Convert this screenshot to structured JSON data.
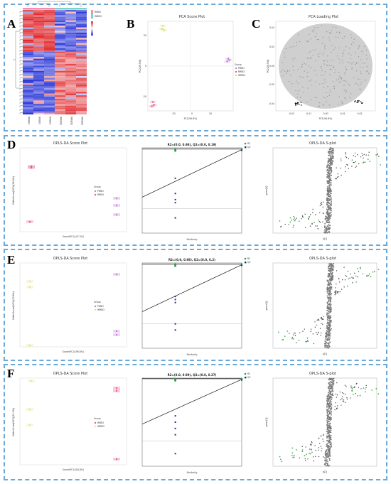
{
  "figure": {
    "panel_letters": [
      "A",
      "B",
      "C",
      "D",
      "E",
      "F"
    ]
  },
  "panelA": {
    "legend_labels": [
      "RRBO",
      "WRBO"
    ],
    "sample_labels": [
      "RRBO1",
      "RRBO2",
      "RRBO3",
      "WRBO1",
      "WRBO2",
      "WRBO3"
    ],
    "colors": {
      "high": "#e0282c",
      "mid": "#ffffff",
      "low": "#2a36d8",
      "group1": "#f48fb1",
      "group2": "#7bd3c4"
    }
  },
  "panelB": {
    "title": "PCA Score Plot",
    "xlabel": "PC1(56.8%)",
    "ylabel": "PC2(20.8%)",
    "legend_title": "Group",
    "legend_items": [
      "PRBO",
      "RRBO",
      "WRBO"
    ],
    "xticks": [
      "-20",
      "0",
      "20"
    ],
    "yticks": [
      "-20",
      "0",
      "20"
    ]
  },
  "panelC": {
    "title": "PCA Loading Plot",
    "xlabel": "PC1(56.8%)",
    "ylabel": "PC2(20.8%)",
    "xticks": [
      "-0.02",
      "-0.01",
      "0.00",
      "0.01",
      "0.02"
    ],
    "yticks": [
      "-0.04",
      "-0.02",
      "0.00",
      "0.02",
      "0.04"
    ]
  },
  "panelD": {
    "score_title": "OPLS-DA Score Plot",
    "score_xlabel": "Score(PC1)(47.3%)",
    "score_ylabel": "OrthoScore(OC1)(26.6%)",
    "legend_title": "Group",
    "legend_items": [
      "PRBO",
      "RRBO"
    ],
    "perm_stat": "R2=(0.0, 0.98), Q2=(0.0, 0.19)",
    "perm_xlabel": "Similarity",
    "perm_legend": [
      "R2",
      "Q2"
    ],
    "splot_title": "OPLS-DA S-plot",
    "splot_xlabel": "p[1]",
    "splot_ylabel": "pcorr[1]"
  },
  "panelE": {
    "score_title": "OPLS-DA Score Plot",
    "score_xlabel": "Score(PC1)(56.8%)",
    "score_ylabel": "OrthoScore(OC1)(20.6%)",
    "legend_title": "Group",
    "legend_items": [
      "PRBO",
      "WRBO"
    ],
    "perm_stat": "R2=(0.0, 0.98), Q2=(0.0, 0.2)",
    "perm_xlabel": "Similarity",
    "perm_legend": [
      "R2",
      "Q2"
    ],
    "splot_title": "OPLS-DA S-plot",
    "splot_xlabel": "p[1]",
    "splot_ylabel": "pcorr[1]"
  },
  "panelF": {
    "score_title": "OPLS-DA Score Plot",
    "score_xlabel": "Score(PC1)(54.8%)",
    "score_ylabel": "OrthoScore(OC1)(21.4%)",
    "legend_title": "Group",
    "legend_items": [
      "RRBO",
      "WRBO"
    ],
    "perm_stat": "R2=(0.0, 0.99), Q2=(0.0, 0.27)",
    "perm_xlabel": "Similarity",
    "perm_legend": [
      "R2",
      "Q2"
    ],
    "splot_title": "OPLS-DA S-plot",
    "splot_xlabel": "p[1]",
    "splot_ylabel": "pcorr[1]"
  },
  "chart_data": [
    {
      "type": "scatter",
      "title": "PCA Score Plot",
      "xlabel": "PC1(56.8%)",
      "ylabel": "PC2(20.8%)",
      "xlim": [
        -35,
        50
      ],
      "ylim": [
        -30,
        30
      ],
      "series": [
        {
          "name": "PRBO",
          "x": [
            44,
            45,
            46
          ],
          "y": [
            3,
            5,
            4
          ]
        },
        {
          "name": "RRBO",
          "x": [
            -30,
            -29,
            -31
          ],
          "y": [
            -24,
            -26,
            -27
          ]
        },
        {
          "name": "WRBO",
          "x": [
            -21,
            -20,
            -19
          ],
          "y": [
            25,
            27,
            24
          ]
        }
      ]
    },
    {
      "type": "line",
      "title": "",
      "xlabel": "Similarity",
      "xlim": [
        0,
        1
      ],
      "ylim": [
        -0.4,
        1.0
      ],
      "series": [
        {
          "name": "R2",
          "x": [
            0.333,
            0.333,
            0.333,
            1.0
          ],
          "y": [
            0.98,
            0.97,
            0.99,
            0.98
          ]
        },
        {
          "name": "Q2",
          "x": [
            0.333,
            0.333,
            0.333,
            0.333,
            0.333,
            1.0
          ],
          "y": [
            0.5,
            0.25,
            0.15,
            0.1,
            -0.1,
            0.19
          ]
        }
      ]
    }
  ]
}
